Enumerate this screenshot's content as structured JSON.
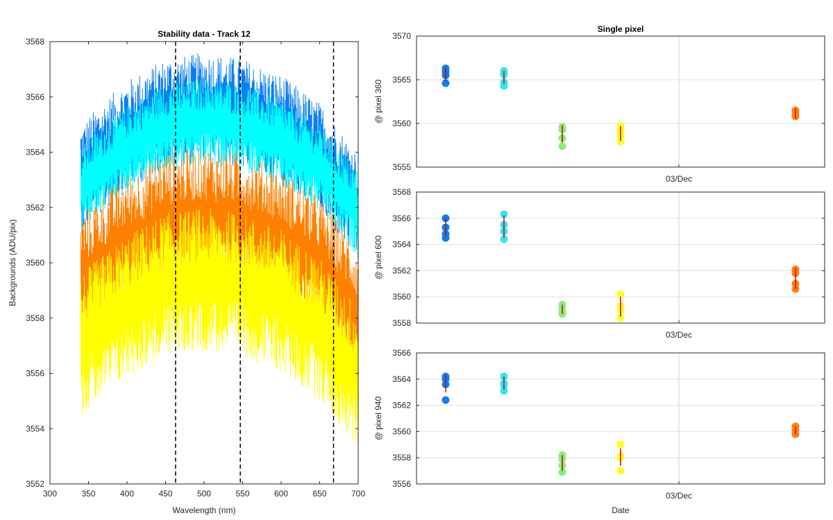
{
  "chart_data": [
    {
      "type": "line",
      "title": "Stability data - Track 12",
      "xlabel": "Wavelength (nm)",
      "ylabel": "Backgrounds (ADU/pix)",
      "xlim": [
        300,
        700
      ],
      "ylim": [
        3552,
        3568
      ],
      "xticks": [
        300,
        350,
        400,
        450,
        500,
        550,
        600,
        650,
        700
      ],
      "yticks": [
        3552,
        3554,
        3556,
        3558,
        3560,
        3562,
        3564,
        3566,
        3568
      ],
      "grid": false,
      "x_range_of_data": [
        340,
        700
      ],
      "vertical_markers": [
        {
          "x": 463,
          "style": "dashed",
          "color": "#000000"
        },
        {
          "x": 547,
          "style": "dashed",
          "color": "#000000"
        },
        {
          "x": 668,
          "style": "dashed",
          "color": "#000000"
        }
      ],
      "series": [
        {
          "color": "#0a7ff2",
          "base_envelope": {
            "x": [
              340,
              360,
              400,
              450,
              500,
              550,
              600,
              650,
              700
            ],
            "y": [
              3563.0,
              3563.6,
              3564.6,
              3565.4,
              3565.6,
              3565.4,
              3564.8,
              3563.8,
              3562.0
            ]
          },
          "spread": 2.0
        },
        {
          "color": "#00ffff",
          "base_envelope": {
            "x": [
              340,
              360,
              400,
              450,
              500,
              550,
              600,
              650,
              700
            ],
            "y": [
              3562.6,
              3563.2,
              3564.1,
              3564.9,
              3565.1,
              3564.9,
              3564.3,
              3563.4,
              3561.8
            ]
          },
          "spread": 1.6
        },
        {
          "color": "#ff8000",
          "base_envelope": {
            "x": [
              340,
              360,
              400,
              450,
              500,
              550,
              600,
              650,
              700
            ],
            "y": [
              3559.2,
              3559.7,
              3560.6,
              3561.4,
              3561.6,
              3561.4,
              3560.8,
              3559.8,
              3558.0
            ]
          },
          "spread": 2.6
        },
        {
          "color": "#ffff00",
          "base_envelope": {
            "x": [
              340,
              360,
              400,
              450,
              500,
              550,
              600,
              650,
              700
            ],
            "y": [
              3557.0,
              3557.5,
              3558.4,
              3559.2,
              3559.4,
              3559.2,
              3558.6,
              3557.6,
              3555.8
            ]
          },
          "spread": 2.6
        }
      ]
    },
    {
      "type": "scatter",
      "title": "Single pixel",
      "ylabel": "@ pixel 360",
      "ylim": [
        3555,
        3570
      ],
      "yticks": [
        3555,
        3560,
        3565,
        3570
      ],
      "xtick_label": "03/Dec",
      "grid": true,
      "groups": [
        {
          "x": 1.0,
          "color": "#0a7ff2",
          "points": [
            3566.3,
            3565.9,
            3565.5,
            3564.6
          ],
          "errorbar": [
            3564.8,
            3566.4
          ]
        },
        {
          "x": 2.0,
          "color": "#33e6f0",
          "points": [
            3566.0,
            3565.6,
            3564.7,
            3564.3
          ],
          "errorbar": [
            3564.5,
            3566.0
          ]
        },
        {
          "x": 3.0,
          "color": "#86f07a",
          "points": [
            3559.6,
            3559.3,
            3558.3,
            3557.4
          ],
          "errorbar": [
            3557.8,
            3559.8
          ]
        },
        {
          "x": 4.0,
          "color": "#ffff22",
          "points": [
            3559.7,
            3559.1,
            3558.6,
            3557.9
          ],
          "errorbar": [
            3558.0,
            3559.7
          ]
        },
        {
          "x": 7.0,
          "color": "#ff8010",
          "points": [
            3561.5,
            3561.3,
            3560.9,
            3560.8
          ],
          "errorbar": [
            3560.6,
            3561.7
          ]
        }
      ]
    },
    {
      "type": "scatter",
      "ylabel": "@ pixel 600",
      "ylim": [
        3558,
        3568
      ],
      "yticks": [
        3558,
        3560,
        3562,
        3564,
        3566,
        3568
      ],
      "xtick_label": "03/Dec",
      "grid": true,
      "groups": [
        {
          "x": 1.0,
          "color": "#0a7ff2",
          "points": [
            3566.0,
            3565.3,
            3564.8,
            3564.5
          ],
          "errorbar": [
            3564.6,
            3566.0
          ]
        },
        {
          "x": 2.0,
          "color": "#33e6f0",
          "points": [
            3566.3,
            3565.5,
            3565.0,
            3564.4
          ],
          "errorbar": [
            3564.5,
            3566.2
          ]
        },
        {
          "x": 3.0,
          "color": "#86f07a",
          "points": [
            3559.4,
            3559.2,
            3558.9,
            3558.7
          ],
          "errorbar": [
            3558.7,
            3559.4
          ]
        },
        {
          "x": 4.0,
          "color": "#ffff22",
          "points": [
            3560.2,
            3559.3,
            3559.0,
            3558.4
          ],
          "errorbar": [
            3558.5,
            3560.0
          ]
        },
        {
          "x": 7.0,
          "color": "#ff8010",
          "points": [
            3562.1,
            3561.8,
            3561.0,
            3560.6
          ],
          "errorbar": [
            3560.6,
            3562.2
          ]
        }
      ]
    },
    {
      "type": "scatter",
      "xlabel": "Date",
      "ylabel": "@ pixel 940",
      "ylim": [
        3556,
        3566
      ],
      "yticks": [
        3556,
        3558,
        3560,
        3562,
        3564,
        3566
      ],
      "xtick_label": "03/Dec",
      "grid": true,
      "groups": [
        {
          "x": 1.0,
          "color": "#0a7ff2",
          "points": [
            3564.2,
            3564.0,
            3563.6,
            3562.4
          ],
          "errorbar": [
            3563.0,
            3564.3
          ]
        },
        {
          "x": 2.0,
          "color": "#33e6f0",
          "points": [
            3564.2,
            3563.7,
            3563.5,
            3563.1
          ],
          "errorbar": [
            3563.2,
            3564.2
          ]
        },
        {
          "x": 3.0,
          "color": "#86f07a",
          "points": [
            3558.2,
            3557.9,
            3557.4,
            3556.9
          ],
          "errorbar": [
            3557.0,
            3558.2
          ]
        },
        {
          "x": 4.0,
          "color": "#ffff22",
          "points": [
            3559.0,
            3558.1,
            3558.0,
            3557.0
          ],
          "errorbar": [
            3557.4,
            3558.7
          ]
        },
        {
          "x": 7.0,
          "color": "#ff8010",
          "points": [
            3560.4,
            3560.1,
            3559.8
          ],
          "errorbar": [
            3559.8,
            3560.4
          ]
        }
      ]
    }
  ]
}
